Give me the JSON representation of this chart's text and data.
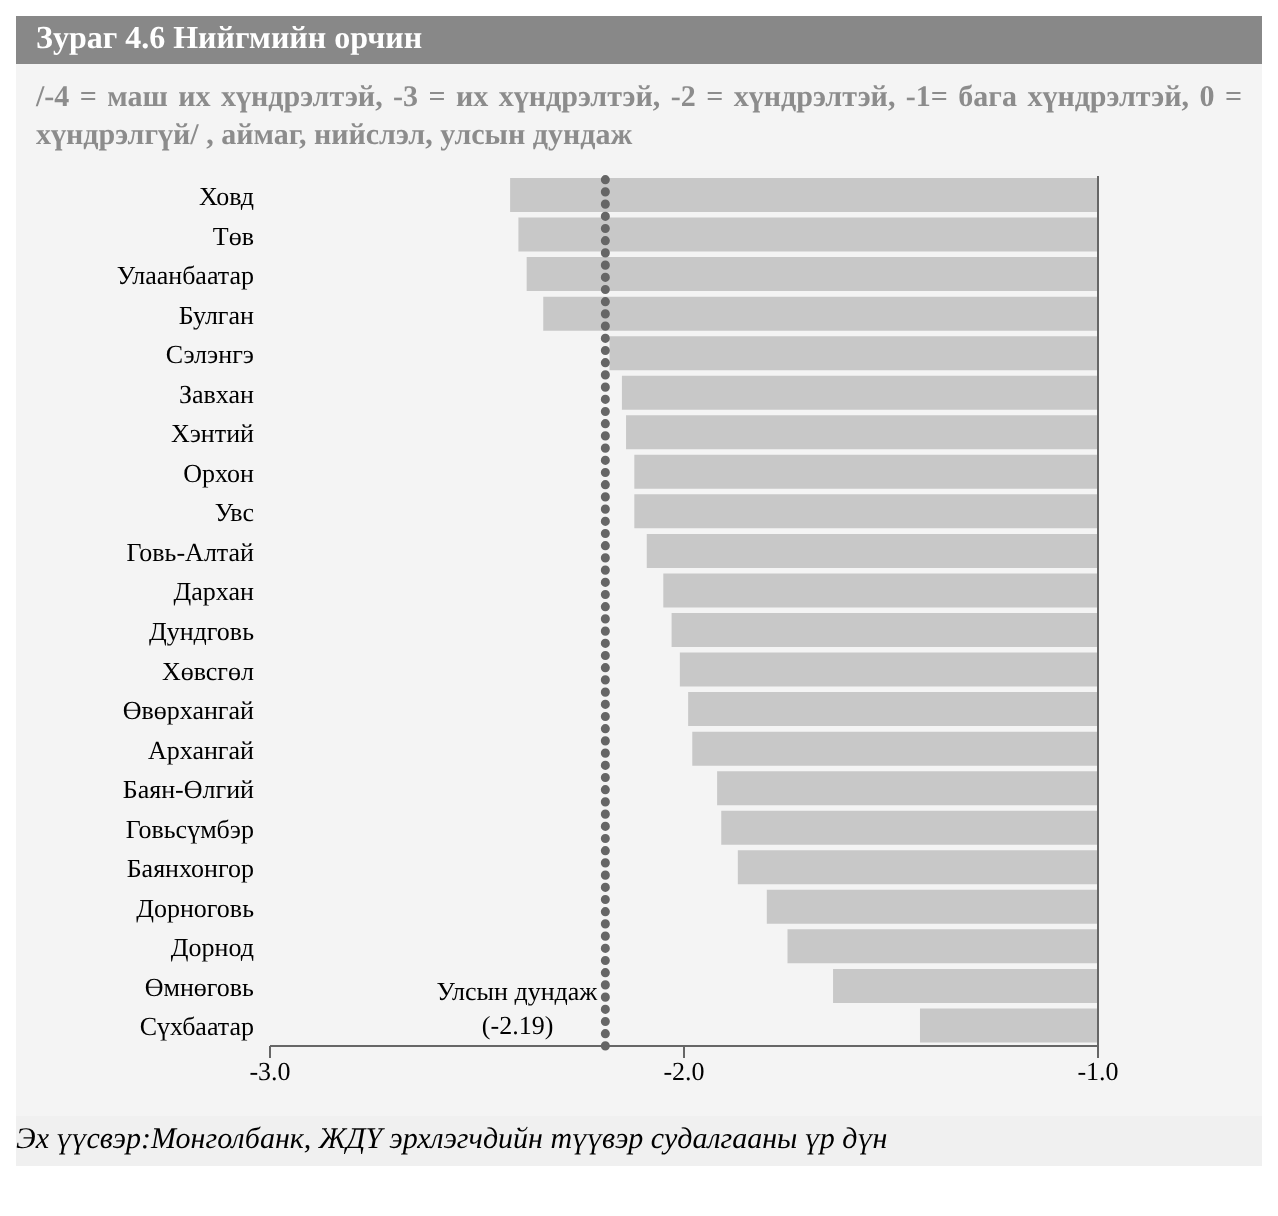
{
  "chart_data": {
    "type": "bar",
    "orientation": "horizontal",
    "title": "Зураг 4.6 Нийгмийн орчин",
    "subtitle": "/-4 = маш их хүндрэлтэй, -3 = их хүндрэлтэй, -2 = хүндрэлтэй, -1= бага хүндрэлтэй, 0 = хүндрэлгүй/ , аймаг, нийслэл, улсын дундаж",
    "categories": [
      "Ховд",
      "Төв",
      "Улаанбаатар",
      "Булган",
      "Сэлэнгэ",
      "Завхан",
      "Хэнтий",
      "Орхон",
      "Увс",
      "Говь-Алтай",
      "Дархан",
      "Дундговь",
      "Хөвсгөл",
      "Өвөрхангай",
      "Архангай",
      "Баян-Өлгий",
      "Говьсүмбэр",
      "Баянхонгор",
      "Дорноговь",
      "Дорнод",
      "Өмнөговь",
      "Сүхбаатар"
    ],
    "values": [
      -2.42,
      -2.4,
      -2.38,
      -2.34,
      -2.18,
      -2.15,
      -2.14,
      -2.12,
      -2.12,
      -2.09,
      -2.05,
      -2.03,
      -2.01,
      -1.99,
      -1.98,
      -1.92,
      -1.91,
      -1.87,
      -1.8,
      -1.75,
      -1.64,
      -1.43
    ],
    "color": "#c8c8c8",
    "xlim": [
      -3,
      -1
    ],
    "xticks": [
      {
        "value": -3,
        "label": "-3.0"
      },
      {
        "value": -2,
        "label": "-2.0"
      },
      {
        "value": -1,
        "label": "-1.0"
      }
    ],
    "ref_lines": [
      {
        "axis": "x",
        "value": -2.19,
        "label": "Улсын дундаж\n(-2.19)",
        "color": "#666666",
        "line_style": "dotted"
      }
    ],
    "annotations": [
      "Эх үүсвэр:Монголбанк, ЖДҮ эрхлэгчдийн түүвэр судалгааны үр дүн"
    ],
    "grid": false,
    "legend": false
  }
}
